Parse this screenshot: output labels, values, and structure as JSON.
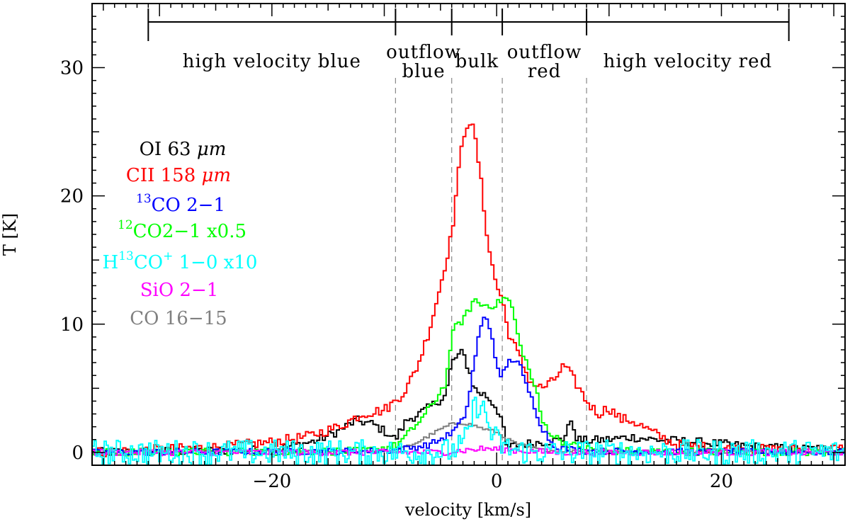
{
  "chart_data": {
    "type": "line",
    "xlabel": "velocity [km/s]",
    "ylabel": "T [K]",
    "xlim": [
      -36,
      31
    ],
    "ylim": [
      -1,
      35
    ],
    "x_ticks": [
      -20,
      0,
      20
    ],
    "y_ticks": [
      0,
      10,
      20,
      30
    ],
    "x_tick_labels": [
      "−20",
      "0",
      "20"
    ],
    "y_tick_labels": [
      "0",
      "10",
      "20",
      "30"
    ],
    "regions": [
      {
        "name": "high-velocity-blue",
        "lines": [
          "high velocity blue"
        ],
        "from": -31,
        "to": -9
      },
      {
        "name": "outflow-blue",
        "lines": [
          "outflow",
          "blue"
        ],
        "from": -9,
        "to": -4
      },
      {
        "name": "bulk",
        "lines": [
          "bulk"
        ],
        "from": -4,
        "to": 0.5
      },
      {
        "name": "outflow-red",
        "lines": [
          "outflow",
          "red"
        ],
        "from": 0.5,
        "to": 8
      },
      {
        "name": "high-velocity-red",
        "lines": [
          "high velocity red"
        ],
        "from": 8,
        "to": 26
      }
    ],
    "region_separators": [
      -9,
      -4,
      0.5,
      8
    ],
    "legend_placement": "left",
    "series": [
      {
        "name": "OI 63 μm",
        "label_parts": [
          "OI 63 ",
          "μm"
        ],
        "color": "#000000",
        "x": [
          -36,
          -20,
          -16,
          -14,
          -12.5,
          -11,
          -9.5,
          -9,
          -8,
          -6.5,
          -5.5,
          -4.5,
          -4,
          -3.5,
          -3,
          -2.5,
          -2,
          -1.5,
          -1,
          -0.5,
          0,
          0.5,
          0.8,
          1,
          2,
          4,
          6,
          6.3,
          6.8,
          7.2,
          8,
          10,
          12,
          14,
          18,
          22,
          26,
          31
        ],
        "y": [
          0,
          0.2,
          0.9,
          1.7,
          2.5,
          2.2,
          1.4,
          1.0,
          2.5,
          3.2,
          3.8,
          4.5,
          7.0,
          7.5,
          7.8,
          6.5,
          5.0,
          4.6,
          4.5,
          4.0,
          3.5,
          2.5,
          0.5,
          0.4,
          0.6,
          0.8,
          1.0,
          2.2,
          2.1,
          1.0,
          0.9,
          1.0,
          1.2,
          1.0,
          0.8,
          0.5,
          0.3,
          0.3
        ]
      },
      {
        "name": "CII 158 μm",
        "label_parts": [
          "CII 158 ",
          "μm"
        ],
        "color": "#ff0000",
        "x": [
          -36,
          -25,
          -20,
          -17,
          -14,
          -12,
          -10,
          -9,
          -8,
          -7,
          -6,
          -5,
          -4,
          -3.5,
          -3,
          -2.5,
          -2,
          -1.5,
          -1,
          -0.5,
          0,
          0.5,
          1,
          2,
          3,
          4,
          5,
          6,
          7,
          8,
          9,
          10,
          11,
          12,
          14,
          16,
          20,
          25,
          31
        ],
        "y": [
          0,
          0.4,
          0.8,
          1.2,
          2.0,
          3.0,
          3.3,
          4.0,
          5.0,
          6.8,
          9.5,
          13.0,
          17.0,
          21.0,
          24.5,
          26.0,
          25.0,
          22.0,
          18.0,
          15.0,
          13.0,
          12.0,
          9.5,
          7.5,
          5.5,
          5.0,
          5.5,
          6.8,
          5.5,
          4.0,
          3.0,
          3.5,
          2.6,
          2.5,
          1.5,
          0.6,
          0.3,
          0.2,
          0.3
        ]
      },
      {
        "name": "13CO 2−1",
        "label_parts": [
          "13",
          "CO 2−1"
        ],
        "color": "#0000ff",
        "x": [
          -36,
          -10,
          -8,
          -6,
          -5,
          -4,
          -3,
          -2.5,
          -2,
          -1.5,
          -1,
          -0.5,
          0,
          0.3,
          0.6,
          1,
          1.5,
          2,
          2.5,
          3,
          4,
          5,
          6,
          8,
          31
        ],
        "y": [
          0,
          0.1,
          0.3,
          0.6,
          1.0,
          1.5,
          2.5,
          4.0,
          7.0,
          9.5,
          10.7,
          9.5,
          7.0,
          5.5,
          6.3,
          7.0,
          7.3,
          7.0,
          5.5,
          4.5,
          2.0,
          0.6,
          0.3,
          0.1,
          0
        ]
      },
      {
        "name": "12CO 2−1 x0.5",
        "label_parts": [
          "12",
          "CO2−1 x0.5"
        ],
        "color": "#00ff00",
        "x": [
          -36,
          -12,
          -9,
          -8,
          -6.5,
          -5.5,
          -4.5,
          -4,
          -3.5,
          -3,
          -2.5,
          -2,
          -1.5,
          -1,
          0,
          0.5,
          1,
          1.5,
          2,
          2.5,
          3,
          3.5,
          4,
          5,
          6,
          7,
          8,
          10,
          31
        ],
        "y": [
          0,
          0.1,
          0.5,
          1.3,
          2.8,
          4.0,
          5.5,
          9.0,
          10.0,
          10.3,
          11.0,
          12.0,
          11.5,
          11.5,
          11.5,
          12.0,
          12.0,
          11.0,
          8.5,
          7.5,
          6.0,
          5.0,
          2.5,
          1.3,
          0.8,
          0.5,
          0.3,
          0.1,
          0
        ]
      },
      {
        "name": "H13CO+ 1−0 x10",
        "label_parts": [
          "H",
          "13",
          "CO",
          "+",
          " 1−0 x10"
        ],
        "color": "#00ffff",
        "x": [
          -36,
          -6,
          -4,
          -3,
          -2.5,
          -2,
          -1.5,
          -1,
          -0.5,
          0,
          0.5,
          1,
          2,
          4,
          31
        ],
        "y": [
          0,
          0,
          0.1,
          0.6,
          1.5,
          3.5,
          3.8,
          3.0,
          1.5,
          1.0,
          0.5,
          0.3,
          0.1,
          0,
          0
        ]
      },
      {
        "name": "SiO 2−1",
        "label_parts": [
          "SiO 2−1"
        ],
        "color": "#ff00ff",
        "x": [
          -36,
          -5,
          -3,
          -1,
          1,
          3,
          5,
          31
        ],
        "y": [
          0,
          0,
          0.15,
          0.3,
          0.2,
          0.1,
          0,
          0
        ]
      },
      {
        "name": "CO 16−15",
        "label_parts": [
          "CO 16−15"
        ],
        "color": "#808080",
        "x": [
          -36,
          -9,
          -7,
          -5,
          -4,
          -3,
          -2,
          -1,
          0,
          1,
          2,
          3,
          4,
          6,
          31
        ],
        "y": [
          0,
          0.1,
          0.8,
          1.8,
          2.2,
          2.3,
          2.1,
          1.8,
          1.6,
          1.0,
          0.6,
          0.4,
          0.2,
          0.1,
          0
        ]
      }
    ]
  }
}
